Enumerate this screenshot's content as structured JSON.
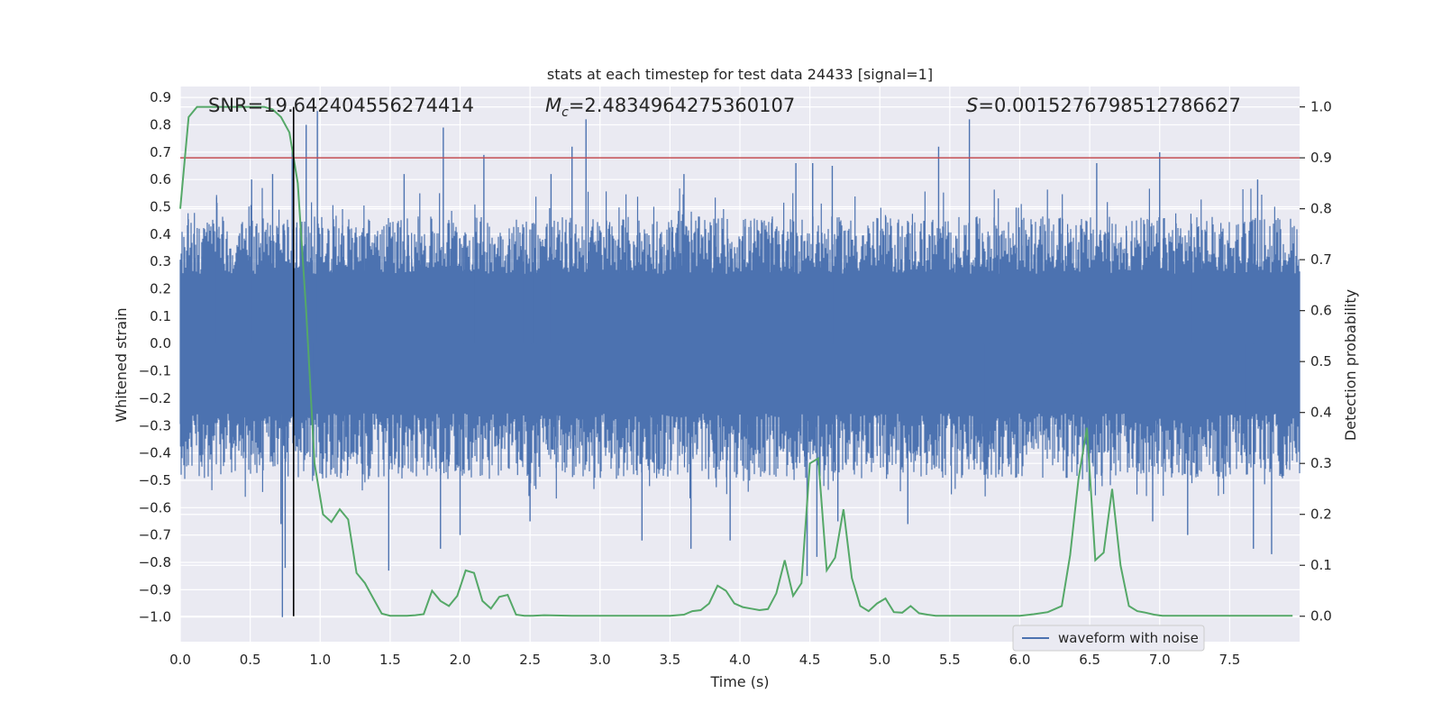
{
  "chart_data": {
    "type": "line",
    "title": "stats at each timestep for test data 24433 [signal=1]",
    "xlabel": "Time (s)",
    "ylabel": "Whitened strain",
    "ylabel_right": "Detection probability",
    "xlim": [
      0,
      8
    ],
    "ylim": [
      -1.09,
      0.94
    ],
    "ylim_right": [
      -0.05,
      1.04
    ],
    "x_ticks": [
      0.0,
      0.5,
      1.0,
      1.5,
      2.0,
      2.5,
      3.0,
      3.5,
      4.0,
      4.5,
      5.0,
      5.5,
      6.0,
      6.5,
      7.0,
      7.5
    ],
    "x_tick_labels": [
      "0.0",
      "0.5",
      "1.0",
      "1.5",
      "2.0",
      "2.5",
      "3.0",
      "3.5",
      "4.0",
      "4.5",
      "5.0",
      "5.5",
      "6.0",
      "6.5",
      "7.0",
      "7.5"
    ],
    "y_ticks": [
      0.9,
      0.8,
      0.7,
      0.6,
      0.5,
      0.4,
      0.3,
      0.2,
      0.1,
      0.0,
      -0.1,
      -0.2,
      -0.3,
      -0.4,
      -0.5,
      -0.6,
      -0.7,
      -0.8,
      -0.9,
      -1.0
    ],
    "y_tick_labels": [
      "0.9",
      "0.8",
      "0.7",
      "0.6",
      "0.5",
      "0.4",
      "0.3",
      "0.2",
      "0.1",
      "0.0",
      "−0.1",
      "−0.2",
      "−0.3",
      "−0.4",
      "−0.5",
      "−0.6",
      "−0.7",
      "−0.8",
      "−0.9",
      "−1.0"
    ],
    "y_right_ticks": [
      1.0,
      0.9,
      0.8,
      0.7,
      0.6,
      0.5,
      0.4,
      0.3,
      0.2,
      0.1,
      0.0
    ],
    "y_right_tick_labels": [
      "1.0",
      "0.9",
      "0.8",
      "0.7",
      "0.6",
      "0.5",
      "0.4",
      "0.3",
      "0.2",
      "0.1",
      "0.0"
    ],
    "grid": true,
    "legend_position": "bottom-right",
    "annotations": {
      "snr": "SNR=19.642404556274414",
      "mc_symbol": "M",
      "mc_sub": "c",
      "mc_value": "=2.4834964275360107",
      "s_symbol": "S",
      "s_value": "=0.0015276798512786627"
    },
    "vertical_line_x": 0.81,
    "threshold_probability": 0.9,
    "series": [
      {
        "name": "waveform with noise",
        "role": "strain",
        "color": "#4c72b0",
        "envelope": {
          "typical_amplitude": 0.3,
          "peak_high": 0.86,
          "peak_low": -1.0
        },
        "peaks": [
          {
            "x": 0.51,
            "y": 0.6
          },
          {
            "x": 0.66,
            "y": 0.62
          },
          {
            "x": 0.8,
            "y": 0.72
          },
          {
            "x": 0.9,
            "y": 0.8
          },
          {
            "x": 0.98,
            "y": 0.85
          },
          {
            "x": 1.6,
            "y": 0.62
          },
          {
            "x": 1.88,
            "y": 0.79
          },
          {
            "x": 2.17,
            "y": 0.69
          },
          {
            "x": 2.65,
            "y": 0.62
          },
          {
            "x": 2.8,
            "y": 0.72
          },
          {
            "x": 2.9,
            "y": 0.82
          },
          {
            "x": 3.6,
            "y": 0.62
          },
          {
            "x": 4.4,
            "y": 0.66
          },
          {
            "x": 4.52,
            "y": 0.66
          },
          {
            "x": 4.66,
            "y": 0.65
          },
          {
            "x": 5.42,
            "y": 0.72
          },
          {
            "x": 5.64,
            "y": 0.82
          },
          {
            "x": 6.55,
            "y": 0.66
          },
          {
            "x": 7.0,
            "y": 0.7
          },
          {
            "x": 7.7,
            "y": 0.6
          }
        ],
        "troughs": [
          {
            "x": 0.72,
            "y": -0.66
          },
          {
            "x": 0.73,
            "y": -1.0
          },
          {
            "x": 0.75,
            "y": -0.82
          },
          {
            "x": 1.49,
            "y": -0.83
          },
          {
            "x": 1.86,
            "y": -0.75
          },
          {
            "x": 2.0,
            "y": -0.7
          },
          {
            "x": 2.5,
            "y": -0.65
          },
          {
            "x": 3.3,
            "y": -0.72
          },
          {
            "x": 3.65,
            "y": -0.75
          },
          {
            "x": 3.93,
            "y": -0.72
          },
          {
            "x": 4.48,
            "y": -0.85
          },
          {
            "x": 4.55,
            "y": -0.78
          },
          {
            "x": 4.7,
            "y": -0.65
          },
          {
            "x": 5.2,
            "y": -0.66
          },
          {
            "x": 6.95,
            "y": -0.65
          },
          {
            "x": 7.2,
            "y": -0.7
          },
          {
            "x": 7.67,
            "y": -0.75
          },
          {
            "x": 7.8,
            "y": -0.77
          }
        ]
      },
      {
        "role": "probability",
        "color": "#55a868",
        "x": [
          0.0,
          0.06,
          0.12,
          0.18,
          0.3,
          0.45,
          0.6,
          0.66,
          0.72,
          0.78,
          0.81,
          0.84,
          0.9,
          0.96,
          1.02,
          1.08,
          1.14,
          1.2,
          1.26,
          1.32,
          1.38,
          1.44,
          1.5,
          1.56,
          1.62,
          1.68,
          1.74,
          1.8,
          1.86,
          1.92,
          1.98,
          2.04,
          2.1,
          2.16,
          2.22,
          2.28,
          2.34,
          2.4,
          2.46,
          2.52,
          2.6,
          2.8,
          3.0,
          3.2,
          3.4,
          3.5,
          3.6,
          3.66,
          3.72,
          3.78,
          3.84,
          3.9,
          3.96,
          4.02,
          4.08,
          4.14,
          4.2,
          4.26,
          4.32,
          4.38,
          4.44,
          4.5,
          4.56,
          4.62,
          4.68,
          4.74,
          4.8,
          4.86,
          4.92,
          4.98,
          5.04,
          5.1,
          5.16,
          5.22,
          5.28,
          5.34,
          5.4,
          5.5,
          5.7,
          6.0,
          6.1,
          6.2,
          6.3,
          6.36,
          6.42,
          6.48,
          6.54,
          6.6,
          6.66,
          6.72,
          6.78,
          6.84,
          6.9,
          6.96,
          7.02,
          7.1,
          7.5,
          7.95
        ],
        "values": [
          0.8,
          0.98,
          1.0,
          1.0,
          1.0,
          1.0,
          1.0,
          0.995,
          0.98,
          0.95,
          0.9,
          0.85,
          0.6,
          0.3,
          0.2,
          0.185,
          0.21,
          0.19,
          0.085,
          0.065,
          0.035,
          0.005,
          0.001,
          0.001,
          0.001,
          0.002,
          0.004,
          0.05,
          0.03,
          0.02,
          0.04,
          0.09,
          0.085,
          0.03,
          0.015,
          0.038,
          0.042,
          0.003,
          0.001,
          0.001,
          0.002,
          0.001,
          0.001,
          0.001,
          0.001,
          0.001,
          0.003,
          0.01,
          0.012,
          0.025,
          0.06,
          0.05,
          0.025,
          0.018,
          0.015,
          0.012,
          0.014,
          0.045,
          0.11,
          0.04,
          0.065,
          0.3,
          0.31,
          0.09,
          0.115,
          0.21,
          0.075,
          0.02,
          0.01,
          0.025,
          0.035,
          0.008,
          0.007,
          0.02,
          0.006,
          0.003,
          0.001,
          0.001,
          0.001,
          0.001,
          0.004,
          0.008,
          0.02,
          0.12,
          0.27,
          0.37,
          0.11,
          0.125,
          0.25,
          0.1,
          0.02,
          0.01,
          0.007,
          0.003,
          0.001,
          0.001,
          0.001,
          0.001
        ]
      },
      {
        "role": "threshold",
        "color": "#c44e52"
      }
    ]
  }
}
